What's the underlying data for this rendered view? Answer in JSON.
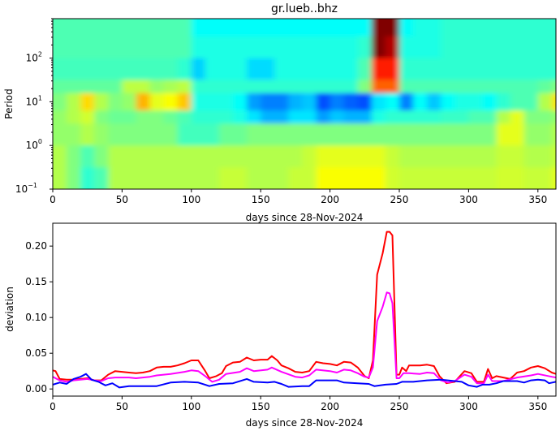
{
  "chart_data": [
    {
      "type": "heatmap",
      "title": "gr.lueb..bhz",
      "xlabel": "days since 28-Nov-2024",
      "ylabel": "Period",
      "xlim": [
        0,
        363
      ],
      "ylim": [
        0.1,
        800
      ],
      "yscale": "log",
      "colormap": "jet",
      "x_ticks": [
        0,
        50,
        100,
        150,
        200,
        250,
        300,
        350
      ],
      "y_tick_labels": [
        "10^-1",
        "10^0",
        "10^1",
        "10^2"
      ],
      "day_bin_width": 10,
      "period_bin_edges_log10": [
        2.9,
        2.5,
        2.0,
        1.5,
        1.2,
        0.8,
        0.5,
        0.0,
        -0.5,
        -1.0
      ],
      "values": [
        [
          0.45,
          0.45,
          0.45,
          0.45,
          0.45,
          0.45,
          0.45,
          0.45,
          0.45,
          0.45,
          0.38,
          0.38,
          0.38,
          0.38,
          0.38,
          0.38,
          0.38,
          0.38,
          0.38,
          0.38,
          0.38,
          0.38,
          0.38,
          1.0,
          1.0,
          0.38,
          0.4,
          0.4,
          0.42,
          0.42,
          0.42,
          0.42,
          0.42,
          0.42,
          0.42,
          0.42,
          0.42
        ],
        [
          0.45,
          0.45,
          0.45,
          0.45,
          0.45,
          0.45,
          0.45,
          0.45,
          0.45,
          0.45,
          0.4,
          0.4,
          0.4,
          0.4,
          0.4,
          0.4,
          0.4,
          0.4,
          0.4,
          0.4,
          0.4,
          0.4,
          0.42,
          1.0,
          0.95,
          0.4,
          0.4,
          0.4,
          0.42,
          0.42,
          0.42,
          0.42,
          0.42,
          0.42,
          0.42,
          0.42,
          0.42
        ],
        [
          0.44,
          0.44,
          0.44,
          0.44,
          0.44,
          0.44,
          0.44,
          0.44,
          0.44,
          0.42,
          0.33,
          0.4,
          0.4,
          0.4,
          0.34,
          0.34,
          0.4,
          0.4,
          0.4,
          0.4,
          0.4,
          0.4,
          0.45,
          0.85,
          0.85,
          0.42,
          0.42,
          0.42,
          0.42,
          0.42,
          0.42,
          0.42,
          0.42,
          0.42,
          0.42,
          0.42,
          0.42
        ],
        [
          0.47,
          0.47,
          0.47,
          0.47,
          0.47,
          0.56,
          0.56,
          0.52,
          0.54,
          0.56,
          0.42,
          0.42,
          0.42,
          0.42,
          0.42,
          0.42,
          0.42,
          0.42,
          0.42,
          0.42,
          0.42,
          0.42,
          0.5,
          0.78,
          0.78,
          0.45,
          0.45,
          0.45,
          0.45,
          0.45,
          0.45,
          0.45,
          0.45,
          0.45,
          0.45,
          0.47,
          0.5
        ],
        [
          0.5,
          0.55,
          0.66,
          0.55,
          0.5,
          0.52,
          0.7,
          0.6,
          0.62,
          0.68,
          0.4,
          0.4,
          0.4,
          0.38,
          0.28,
          0.25,
          0.25,
          0.3,
          0.32,
          0.2,
          0.25,
          0.22,
          0.2,
          0.35,
          0.38,
          0.25,
          0.38,
          0.32,
          0.38,
          0.4,
          0.4,
          0.38,
          0.42,
          0.45,
          0.45,
          0.55,
          0.65
        ],
        [
          0.52,
          0.55,
          0.58,
          0.5,
          0.48,
          0.48,
          0.5,
          0.5,
          0.48,
          0.45,
          0.42,
          0.42,
          0.42,
          0.4,
          0.35,
          0.3,
          0.3,
          0.35,
          0.35,
          0.28,
          0.32,
          0.3,
          0.3,
          0.4,
          0.42,
          0.42,
          0.42,
          0.42,
          0.43,
          0.43,
          0.45,
          0.45,
          0.55,
          0.6,
          0.5,
          0.5,
          0.52
        ],
        [
          0.52,
          0.52,
          0.55,
          0.52,
          0.5,
          0.5,
          0.5,
          0.5,
          0.5,
          0.44,
          0.44,
          0.44,
          0.48,
          0.48,
          0.5,
          0.5,
          0.5,
          0.5,
          0.5,
          0.5,
          0.5,
          0.5,
          0.5,
          0.5,
          0.5,
          0.5,
          0.5,
          0.5,
          0.5,
          0.5,
          0.5,
          0.5,
          0.6,
          0.6,
          0.52,
          0.52,
          0.55
        ],
        [
          0.55,
          0.5,
          0.45,
          0.5,
          0.55,
          0.55,
          0.55,
          0.55,
          0.55,
          0.55,
          0.55,
          0.55,
          0.55,
          0.55,
          0.55,
          0.55,
          0.55,
          0.55,
          0.57,
          0.6,
          0.6,
          0.6,
          0.6,
          0.6,
          0.57,
          0.55,
          0.55,
          0.55,
          0.55,
          0.55,
          0.55,
          0.55,
          0.57,
          0.57,
          0.55,
          0.55,
          0.57
        ],
        [
          0.55,
          0.5,
          0.42,
          0.45,
          0.55,
          0.55,
          0.55,
          0.55,
          0.55,
          0.55,
          0.55,
          0.55,
          0.57,
          0.57,
          0.55,
          0.55,
          0.55,
          0.57,
          0.57,
          0.62,
          0.62,
          0.62,
          0.62,
          0.62,
          0.58,
          0.57,
          0.57,
          0.57,
          0.57,
          0.57,
          0.57,
          0.57,
          0.58,
          0.58,
          0.57,
          0.57,
          0.6
        ]
      ]
    },
    {
      "type": "line",
      "xlabel": "days since 28-Nov-2024",
      "ylabel": "deviation",
      "xlim": [
        0,
        363
      ],
      "ylim": [
        -0.01,
        0.232
      ],
      "x_ticks": [
        0,
        50,
        100,
        150,
        200,
        250,
        300,
        350
      ],
      "y_ticks": [
        "0.00",
        "0.05",
        "0.10",
        "0.15",
        "0.20"
      ],
      "series": [
        {
          "color": "#ff0000",
          "x": [
            0,
            2,
            5,
            10,
            15,
            20,
            25,
            30,
            35,
            40,
            45,
            50,
            55,
            60,
            65,
            70,
            75,
            80,
            85,
            90,
            95,
            100,
            105,
            110,
            113,
            118,
            122,
            125,
            130,
            135,
            140,
            145,
            150,
            155,
            158,
            162,
            165,
            170,
            175,
            180,
            185,
            190,
            195,
            200,
            205,
            210,
            215,
            220,
            225,
            228,
            231,
            234,
            238,
            241,
            243,
            245,
            248,
            250,
            252,
            255,
            257,
            265,
            270,
            275,
            279,
            284,
            290,
            297,
            302,
            306,
            311,
            314,
            317,
            320,
            325,
            330,
            335,
            340,
            345,
            350,
            355,
            360,
            363
          ],
          "y": [
            0.026,
            0.025,
            0.014,
            0.013,
            0.013,
            0.014,
            0.015,
            0.012,
            0.012,
            0.02,
            0.025,
            0.024,
            0.023,
            0.022,
            0.023,
            0.025,
            0.03,
            0.031,
            0.031,
            0.033,
            0.036,
            0.04,
            0.04,
            0.025,
            0.015,
            0.018,
            0.022,
            0.032,
            0.037,
            0.038,
            0.044,
            0.04,
            0.041,
            0.041,
            0.046,
            0.04,
            0.033,
            0.029,
            0.024,
            0.023,
            0.025,
            0.038,
            0.036,
            0.035,
            0.033,
            0.038,
            0.037,
            0.03,
            0.018,
            0.015,
            0.04,
            0.16,
            0.19,
            0.22,
            0.22,
            0.215,
            0.02,
            0.02,
            0.03,
            0.025,
            0.033,
            0.033,
            0.034,
            0.032,
            0.018,
            0.008,
            0.01,
            0.025,
            0.022,
            0.01,
            0.01,
            0.028,
            0.015,
            0.018,
            0.016,
            0.014,
            0.023,
            0.025,
            0.03,
            0.032,
            0.029,
            0.023,
            0.021
          ]
        },
        {
          "color": "#ff00ff",
          "x": [
            0,
            5,
            10,
            15,
            20,
            25,
            30,
            35,
            40,
            45,
            55,
            60,
            70,
            75,
            85,
            95,
            100,
            105,
            110,
            115,
            120,
            125,
            135,
            140,
            145,
            155,
            158,
            165,
            175,
            180,
            185,
            190,
            200,
            205,
            210,
            215,
            220,
            225,
            228,
            231,
            234,
            238,
            241,
            243,
            245,
            248,
            250,
            253,
            257,
            265,
            270,
            275,
            280,
            285,
            290,
            297,
            302,
            306,
            311,
            314,
            317,
            325,
            335,
            345,
            350,
            360,
            363
          ],
          "y": [
            0.017,
            0.012,
            0.01,
            0.012,
            0.013,
            0.014,
            0.012,
            0.011,
            0.015,
            0.016,
            0.016,
            0.015,
            0.017,
            0.019,
            0.021,
            0.024,
            0.026,
            0.025,
            0.018,
            0.01,
            0.013,
            0.021,
            0.024,
            0.029,
            0.025,
            0.027,
            0.03,
            0.024,
            0.017,
            0.016,
            0.019,
            0.027,
            0.025,
            0.023,
            0.027,
            0.026,
            0.022,
            0.017,
            0.016,
            0.03,
            0.095,
            0.115,
            0.135,
            0.134,
            0.12,
            0.015,
            0.015,
            0.022,
            0.022,
            0.021,
            0.023,
            0.022,
            0.012,
            0.009,
            0.011,
            0.02,
            0.017,
            0.008,
            0.008,
            0.02,
            0.011,
            0.011,
            0.016,
            0.019,
            0.021,
            0.017,
            0.016
          ]
        },
        {
          "color": "#0000ff",
          "x": [
            0,
            5,
            10,
            15,
            20,
            24,
            28,
            33,
            38,
            43,
            48,
            55,
            65,
            75,
            85,
            95,
            105,
            113,
            120,
            130,
            140,
            145,
            155,
            160,
            165,
            170,
            180,
            185,
            190,
            200,
            205,
            210,
            220,
            228,
            232,
            240,
            248,
            252,
            260,
            270,
            280,
            285,
            295,
            300,
            306,
            310,
            315,
            320,
            325,
            335,
            340,
            345,
            350,
            355,
            358,
            363
          ],
          "y": [
            0.006,
            0.009,
            0.007,
            0.014,
            0.017,
            0.021,
            0.013,
            0.01,
            0.005,
            0.008,
            0.002,
            0.004,
            0.004,
            0.004,
            0.009,
            0.01,
            0.009,
            0.004,
            0.007,
            0.008,
            0.014,
            0.01,
            0.009,
            0.01,
            0.007,
            0.003,
            0.004,
            0.004,
            0.012,
            0.012,
            0.012,
            0.009,
            0.008,
            0.007,
            0.004,
            0.006,
            0.007,
            0.01,
            0.01,
            0.012,
            0.013,
            0.012,
            0.01,
            0.005,
            0.003,
            0.006,
            0.006,
            0.008,
            0.011,
            0.011,
            0.009,
            0.012,
            0.013,
            0.012,
            0.008,
            0.01
          ]
        }
      ]
    }
  ]
}
